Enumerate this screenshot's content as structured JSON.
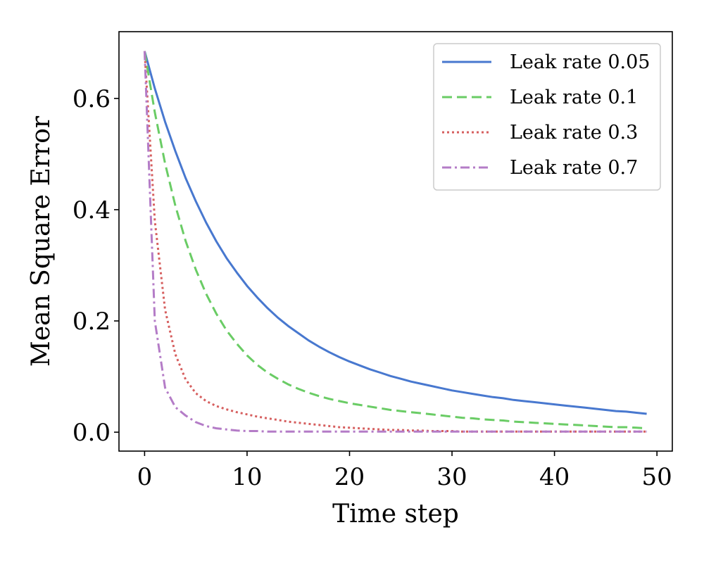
{
  "chart_data": {
    "type": "line",
    "xlabel": "Time step",
    "ylabel": "Mean Square Error",
    "xlim": [
      -2.5,
      51.5
    ],
    "ylim": [
      -0.034,
      0.72
    ],
    "xticks": [
      0,
      10,
      20,
      30,
      40,
      50
    ],
    "xtick_labels": [
      "0",
      "10",
      "20",
      "30",
      "40",
      "50"
    ],
    "yticks": [
      0.0,
      0.2,
      0.4,
      0.6
    ],
    "ytick_labels": [
      "0.0",
      "0.2",
      "0.4",
      "0.6"
    ],
    "grid": false,
    "legend_position": "top-right",
    "x": [
      0,
      1,
      2,
      3,
      4,
      5,
      6,
      7,
      8,
      9,
      10,
      11,
      12,
      13,
      14,
      15,
      16,
      17,
      18,
      19,
      20,
      21,
      22,
      23,
      24,
      25,
      26,
      27,
      28,
      29,
      30,
      31,
      32,
      33,
      34,
      35,
      36,
      37,
      38,
      39,
      40,
      41,
      42,
      43,
      44,
      45,
      46,
      47,
      48,
      49
    ],
    "series": [
      {
        "name": "Leak rate 0.05",
        "color": "#4878cf",
        "dash": "solid",
        "values": [
          0.685,
          0.618,
          0.558,
          0.505,
          0.457,
          0.415,
          0.377,
          0.343,
          0.313,
          0.287,
          0.263,
          0.242,
          0.223,
          0.206,
          0.191,
          0.178,
          0.165,
          0.154,
          0.144,
          0.135,
          0.127,
          0.12,
          0.113,
          0.107,
          0.101,
          0.096,
          0.091,
          0.087,
          0.083,
          0.079,
          0.075,
          0.072,
          0.069,
          0.066,
          0.063,
          0.061,
          0.058,
          0.056,
          0.054,
          0.052,
          0.05,
          0.048,
          0.046,
          0.044,
          0.042,
          0.04,
          0.038,
          0.037,
          0.035,
          0.033
        ]
      },
      {
        "name": "Leak rate 0.1",
        "color": "#6acc65",
        "dash": "dashed",
        "values": [
          0.685,
          0.575,
          0.483,
          0.407,
          0.344,
          0.292,
          0.249,
          0.213,
          0.183,
          0.159,
          0.138,
          0.121,
          0.107,
          0.096,
          0.086,
          0.078,
          0.071,
          0.065,
          0.06,
          0.056,
          0.052,
          0.049,
          0.046,
          0.043,
          0.04,
          0.038,
          0.036,
          0.034,
          0.032,
          0.03,
          0.028,
          0.026,
          0.025,
          0.023,
          0.022,
          0.021,
          0.019,
          0.018,
          0.017,
          0.016,
          0.015,
          0.014,
          0.013,
          0.012,
          0.011,
          0.01,
          0.009,
          0.009,
          0.008,
          0.007
        ]
      },
      {
        "name": "Leak rate 0.3",
        "color": "#d65f5f",
        "dash": "dotted",
        "values": [
          0.685,
          0.38,
          0.22,
          0.14,
          0.095,
          0.07,
          0.056,
          0.047,
          0.041,
          0.036,
          0.032,
          0.028,
          0.025,
          0.022,
          0.019,
          0.017,
          0.015,
          0.013,
          0.011,
          0.009,
          0.008,
          0.007,
          0.006,
          0.005,
          0.004,
          0.004,
          0.003,
          0.003,
          0.002,
          0.002,
          0.002,
          0.001,
          0.001,
          0.001,
          0.001,
          0.001,
          0.001,
          0.001,
          0.001,
          0.001,
          0.001,
          0.001,
          0.001,
          0.001,
          0.001,
          0.001,
          0.001,
          0.001,
          0.001,
          0.001
        ]
      },
      {
        "name": "Leak rate 0.7",
        "color": "#b47cc7",
        "dash": "dashdot",
        "values": [
          0.685,
          0.2,
          0.08,
          0.045,
          0.03,
          0.018,
          0.011,
          0.007,
          0.005,
          0.003,
          0.002,
          0.002,
          0.001,
          0.001,
          0.001,
          0.001,
          0.001,
          0.001,
          0.001,
          0.001,
          0.001,
          0.001,
          0.001,
          0.001,
          0.001,
          0.001,
          0.001,
          0.001,
          0.001,
          0.001,
          0.001,
          0.001,
          0.001,
          0.001,
          0.001,
          0.001,
          0.001,
          0.001,
          0.001,
          0.001,
          0.001,
          0.001,
          0.001,
          0.001,
          0.001,
          0.001,
          0.001,
          0.001,
          0.001,
          0.001
        ]
      }
    ]
  }
}
